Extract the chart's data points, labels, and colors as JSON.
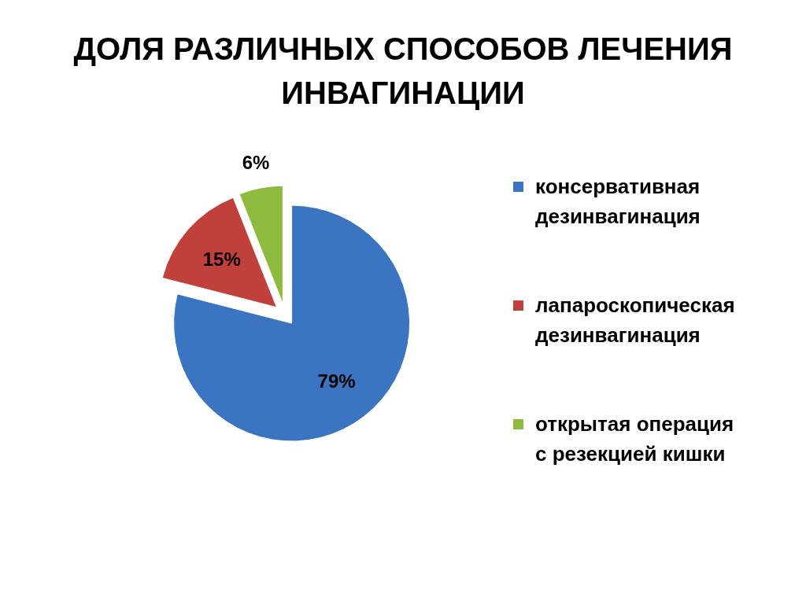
{
  "chart_data": {
    "type": "pie",
    "title": "ДОЛЯ РАЗЛИЧНЫХ СПОСОБОВ ЛЕЧЕНИЯ ИНВАГИНАЦИИ",
    "categories": [
      "консервативная дезинвагинация",
      "лапароскопическая дезинвагинация",
      "открытая операция с резекцией кишки"
    ],
    "values": [
      79,
      15,
      6
    ],
    "value_labels": [
      "79%",
      "15%",
      "6%"
    ],
    "colors": [
      "#3b74c0",
      "#c0403c",
      "#8cbb3f"
    ],
    "legend": "right"
  }
}
